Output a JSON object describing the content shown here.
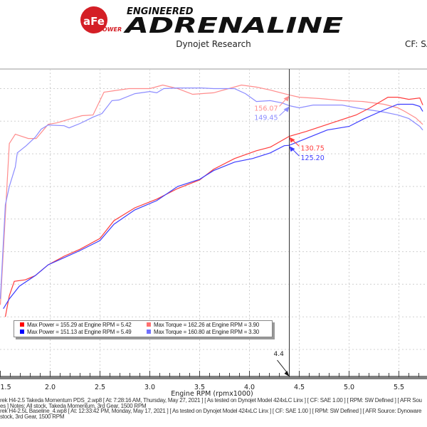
{
  "header": {
    "logo_text": "aFe POWER ENGINEERED ADRENALINE",
    "subtitle": "Dynojet Research",
    "cf_label": "CF: SA"
  },
  "colors": {
    "power_takeda": "#ff3c3c",
    "power_baseline": "#3c3cff",
    "torque_takeda": "#ff8c8c",
    "torque_baseline": "#8c8cff",
    "cursor": "#333333",
    "grid": "#d0d0d0",
    "axis_band": "#808080"
  },
  "legend": [
    {
      "color": "#ff0000",
      "text": "Max Power = 155.29 at Engine RPM = 5.42"
    },
    {
      "color": "#ff7070",
      "text": "Max Torque = 162.26 at Engine RPM = 3.90"
    },
    {
      "color": "#0000ff",
      "text": "Max Power = 151.13 at Engine RPM = 5.49"
    },
    {
      "color": "#7070ff",
      "text": "Max Torque = 160.80 at Engine RPM = 3.30"
    }
  ],
  "cursor": {
    "x": 4.4,
    "label": "4.4",
    "readouts": [
      {
        "series": "torque_takeda",
        "value": "156.07"
      },
      {
        "series": "torque_baseline",
        "value": "149.45"
      },
      {
        "series": "power_takeda",
        "value": "130.75"
      },
      {
        "series": "power_baseline",
        "value": "125.20"
      }
    ]
  },
  "footer": [
    "rek H4-2.5 Takeda Momentum PDS_2.wp8 [ At: 7:28:16 AM, Thursday, May 27, 2021 ] [ As tested on Dynojet Model 424xLC Linx ] [ CF: SAE 1.00 ] [ RPM: SW Defined ] [ AFR Sou",
    "es ]  Notes: All stock, Takeda Momentum, 3rd Gear, 1500 RPM",
    "rek H4-2.5L Baseline_4.wp8 [ At: 12:33:42 PM, Monday, May 17, 2021 ] [ As tested on Dynojet Model 424xLC Linx ] [ CF: SAE 1.00 ] [ RPM: SW Defined ] [ AFR Source: Dynoware",
    "stock, 3rd Gear, 1500 RPM"
  ],
  "chart_data": {
    "type": "line",
    "xlabel": "Engine RPM (rpmx1000)",
    "xlim": [
      1.5,
      5.78
    ],
    "ylim": [
      -17,
      172
    ],
    "xticks": [
      "1.5",
      "2.0",
      "2.5",
      "3.0",
      "3.5",
      "4.0",
      "4.5",
      "5.0",
      "5.5"
    ],
    "grid": true,
    "series": [
      {
        "key": "torque_takeda",
        "x": [
          1.5,
          1.59,
          1.65,
          1.78,
          1.86,
          1.98,
          2.07,
          2.19,
          2.32,
          2.43,
          2.54,
          2.64,
          2.79,
          3.0,
          3.13,
          3.28,
          3.43,
          3.64,
          3.92,
          4.07,
          4.21,
          4.4,
          4.5,
          4.71,
          4.93,
          5.14,
          5.35,
          5.49,
          5.56,
          5.67,
          5.74
        ],
        "y": [
          27.4,
          126.3,
          132,
          129.4,
          129.4,
          138.1,
          139,
          141.2,
          143.4,
          143.8,
          157.8,
          158.7,
          160,
          160,
          162.2,
          160,
          156.5,
          157.4,
          162.2,
          160.9,
          159.1,
          156.1,
          154.7,
          153.9,
          152.6,
          152.1,
          150.4,
          148.2,
          146,
          142,
          138
        ]
      },
      {
        "key": "torque_baseline",
        "x": [
          1.5,
          1.55,
          1.59,
          1.65,
          1.67,
          1.76,
          1.85,
          1.91,
          1.98,
          2.14,
          2.19,
          2.3,
          2.43,
          2.52,
          2.62,
          2.69,
          2.85,
          3.0,
          3.07,
          3.14,
          3.28,
          3.52,
          3.64,
          3.85,
          3.96,
          4.07,
          4.21,
          4.33,
          4.4,
          4.5,
          4.64,
          4.93,
          5.07,
          5.21,
          5.35,
          5.49,
          5.6,
          5.71,
          5.74
        ],
        "y": [
          31,
          88.7,
          100,
          111.9,
          120.6,
          125,
          130.2,
          135.1,
          137.7,
          137.2,
          135.9,
          138.6,
          142.5,
          144.7,
          152.6,
          153,
          156.9,
          158.2,
          157.4,
          160,
          160.4,
          160.4,
          160,
          160,
          156.9,
          152.1,
          152.6,
          151.2,
          149.5,
          148.2,
          149.9,
          149.9,
          148.2,
          146.9,
          145.6,
          143.8,
          141.6,
          136.8,
          134.6
        ]
      },
      {
        "key": "power_takeda",
        "x": [
          1.55,
          1.59,
          1.64,
          1.75,
          1.85,
          1.98,
          2.14,
          2.3,
          2.5,
          2.64,
          2.85,
          3.07,
          3.28,
          3.5,
          3.64,
          3.85,
          4.07,
          4.21,
          4.4,
          4.57,
          4.85,
          5.07,
          5.21,
          5.39,
          5.49,
          5.6,
          5.71,
          5.74
        ],
        "y": [
          20,
          33,
          41.8,
          42.7,
          45.3,
          51.9,
          57.2,
          61.5,
          68.1,
          79,
          86.9,
          92.2,
          98.7,
          104,
          110.5,
          117.1,
          121.9,
          124.1,
          130.75,
          133.7,
          139.4,
          143.8,
          148.2,
          154.7,
          154.7,
          153.4,
          154.3,
          149.9
        ]
      },
      {
        "key": "power_baseline",
        "x": [
          1.53,
          1.59,
          1.69,
          1.85,
          1.98,
          2.14,
          2.3,
          2.5,
          2.64,
          2.85,
          3.07,
          3.28,
          3.5,
          3.64,
          3.85,
          4.03,
          4.21,
          4.35,
          4.4,
          4.57,
          4.78,
          5.0,
          5.14,
          5.35,
          5.49,
          5.64,
          5.71,
          5.74
        ],
        "y": [
          25,
          31,
          38.8,
          45.3,
          51.9,
          56.3,
          60.7,
          66.8,
          76.8,
          85.6,
          91.3,
          100,
          104.4,
          109.7,
          114.9,
          117.1,
          120.6,
          125,
          125.2,
          129.4,
          134.6,
          136.8,
          141.2,
          146.9,
          150.4,
          150.4,
          149.1,
          146
        ]
      }
    ]
  }
}
